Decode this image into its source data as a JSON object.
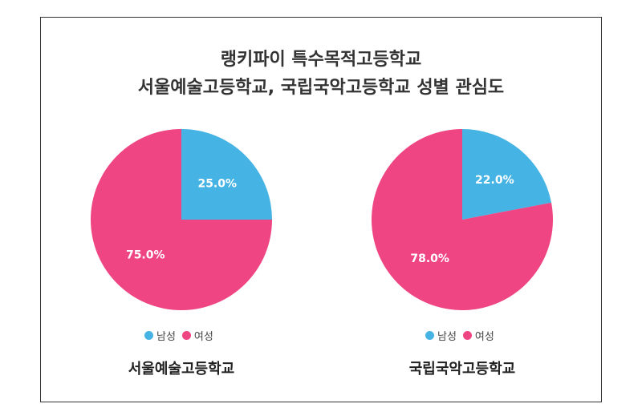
{
  "title_line1": "랭키파이 특수목적고등학교",
  "title_line2": "서울예술고등학교, 국립국악고등학교 성별 관심도",
  "colors": {
    "male": "#45b3e3",
    "female": "#ef4583"
  },
  "chart_data": [
    {
      "type": "pie",
      "title": "서울예술고등학교",
      "labels": [
        "남성",
        "여성"
      ],
      "values": [
        25.0,
        75.0
      ],
      "value_labels": [
        "25.0%",
        "75.0%"
      ],
      "legend": "bottom"
    },
    {
      "type": "pie",
      "title": "국립국악고등학교",
      "labels": [
        "남성",
        "여성"
      ],
      "values": [
        22.0,
        78.0
      ],
      "value_labels": [
        "22.0%",
        "78.0%"
      ],
      "legend": "bottom"
    }
  ]
}
